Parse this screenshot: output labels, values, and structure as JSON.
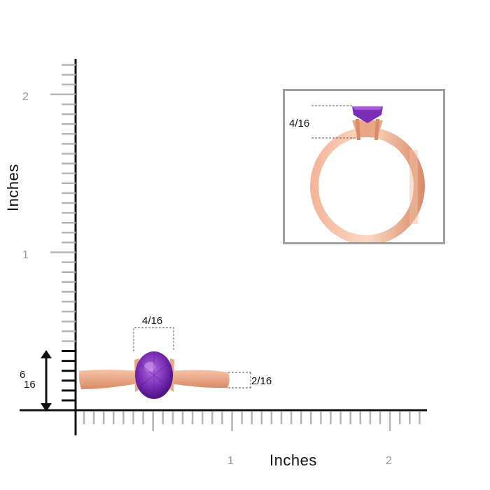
{
  "axes": {
    "y_title": "Inches",
    "x_title": "Inches",
    "y_ticks": [
      "1",
      "2"
    ],
    "x_ticks": [
      "1",
      "2"
    ]
  },
  "dimensions": {
    "stone_width": "4/16",
    "band_width": "2/16",
    "ring_height_num": "6",
    "ring_height_den": "16",
    "stone_height": "4/16"
  },
  "colors": {
    "metal": "#e9a787",
    "metal_dark": "#d98a66",
    "gem": "#7a2db5",
    "gem_dark": "#4a1180",
    "ruler": "#b5b5b5",
    "axis": "#111111"
  }
}
